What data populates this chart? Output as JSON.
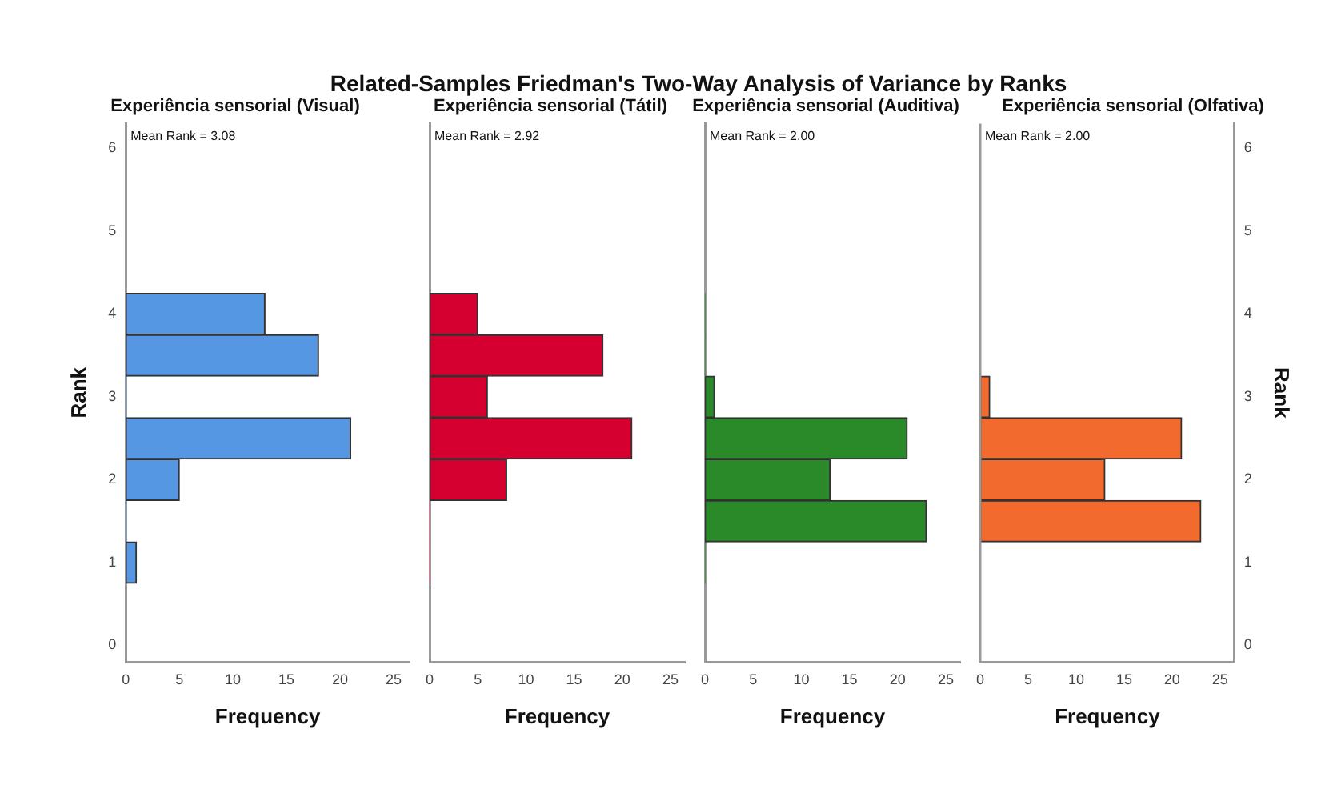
{
  "chart_data": [
    {
      "type": "histogram",
      "orientation": "horizontal",
      "title": "Related-Samples Friedman's Two-Way Analysis of Variance by Ranks",
      "subtitle": "Experiência sensorial (Visual)",
      "xlabel": "Frequency",
      "ylabel": "Rank",
      "annotations": [
        "Mean Rank = 3.08"
      ],
      "bins": [
        0.75,
        1.25,
        1.75,
        2.25,
        2.75,
        3.25,
        3.75,
        4.25
      ],
      "values": [
        1,
        0,
        5,
        21,
        0,
        18,
        13
      ],
      "color": "#5597e2",
      "xlim": [
        0,
        26.5
      ],
      "xticks": [
        0,
        5,
        10,
        15,
        20,
        25
      ],
      "ylim": [
        -0.2,
        6.3
      ],
      "yticks": [
        0,
        1,
        2,
        3,
        4,
        5,
        6
      ]
    },
    {
      "type": "histogram",
      "orientation": "horizontal",
      "subtitle": "Experiência sensorial (Tátil)",
      "xlabel": "Frequency",
      "annotations": [
        "Mean Rank = 2.92"
      ],
      "bins": [
        0.75,
        1.25,
        1.75,
        2.25,
        2.75,
        3.25,
        3.75,
        4.25
      ],
      "values": [
        0,
        0,
        8,
        21,
        6,
        18,
        5
      ],
      "color": "#d5002f",
      "xlim": [
        0,
        26.5
      ],
      "xticks": [
        0,
        5,
        10,
        15,
        20,
        25
      ],
      "ylim": [
        -0.2,
        6.3
      ],
      "yticks": [
        0,
        1,
        2,
        3,
        4,
        5,
        6
      ],
      "tick_labels": "x"
    },
    {
      "type": "histogram",
      "orientation": "horizontal",
      "subtitle": "Experiência sensorial (Auditiva)",
      "xlabel": "Frequency",
      "annotations": [
        "Mean Rank = 2.00"
      ],
      "bins": [
        0.75,
        1.25,
        1.75,
        2.25,
        2.75,
        3.25,
        3.75,
        4.25
      ],
      "values": [
        0,
        23,
        13,
        21,
        1,
        0,
        0
      ],
      "color": "#2a8a2a",
      "xlim": [
        0,
        26.5
      ],
      "xticks": [
        0,
        5,
        10,
        15,
        20,
        25
      ],
      "ylim": [
        -0.2,
        6.3
      ],
      "yticks": [
        0,
        1,
        2,
        3,
        4,
        5,
        6
      ],
      "tick_labels": "x"
    },
    {
      "type": "histogram",
      "orientation": "horizontal",
      "subtitle": "Experiência sensorial (Olfativa)",
      "xlabel": "Frequency",
      "ylabel": "Rank",
      "annotations": [
        "Mean Rank = 2.00"
      ],
      "bins": [
        0.75,
        1.25,
        1.75,
        2.25,
        2.75,
        3.25,
        3.75,
        4.25
      ],
      "values": [
        0,
        23,
        13,
        21,
        1,
        0,
        0
      ],
      "color": "#f26a2e",
      "xlim": [
        0,
        26.5
      ],
      "xticks": [
        0,
        5,
        10,
        15,
        20,
        25
      ],
      "ylim": [
        -0.2,
        6.3
      ],
      "yticks": [
        0,
        1,
        2,
        3,
        4,
        5,
        6
      ]
    }
  ]
}
